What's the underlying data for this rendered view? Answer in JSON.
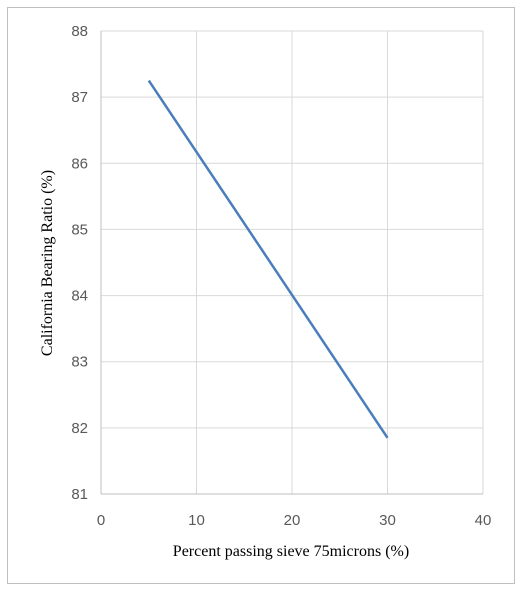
{
  "chart_data": {
    "type": "line",
    "title": "",
    "xlabel": "Percent passing sieve 75microns (%)",
    "ylabel": "California Bearing Ratio (%)",
    "xlim": [
      0,
      40
    ],
    "ylim": [
      81,
      88
    ],
    "xticks": [
      0,
      10,
      20,
      30,
      40
    ],
    "yticks": [
      81,
      82,
      83,
      84,
      85,
      86,
      87,
      88
    ],
    "grid": true,
    "legend": "none",
    "series": [
      {
        "x": [
          5,
          30
        ],
        "y": [
          87.25,
          81.85
        ],
        "color": "#4a7ebb"
      }
    ]
  }
}
